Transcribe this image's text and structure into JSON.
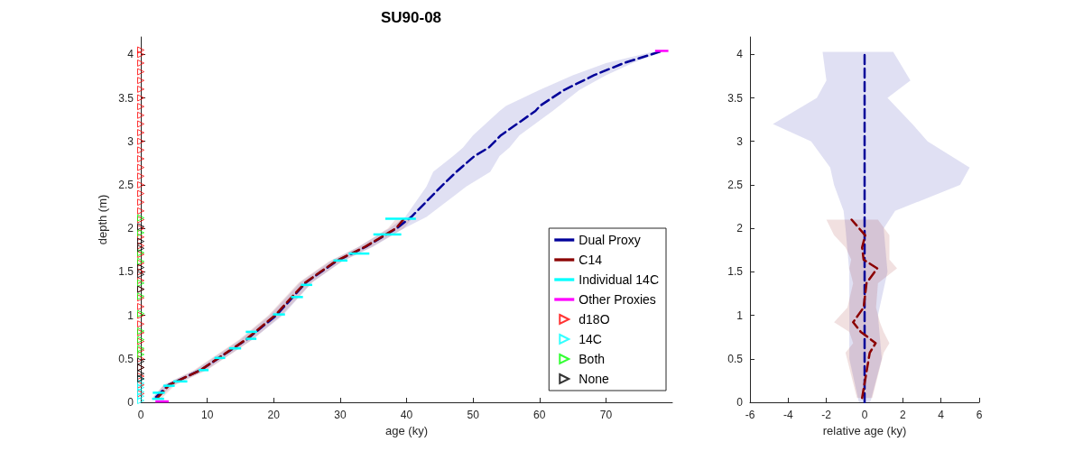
{
  "chart_data": [
    {
      "type": "line",
      "orientation": "horizontal",
      "title": "SU90-08",
      "xlabel": "age (ky)",
      "ylabel": "depth (m)",
      "xlim": [
        0,
        80
      ],
      "xticks": [
        0,
        10,
        20,
        30,
        40,
        50,
        60,
        70
      ],
      "ylim": [
        0,
        4.2
      ],
      "yticks": [
        0,
        0.5,
        1,
        1.5,
        2,
        2.5,
        3,
        3.5,
        4
      ],
      "grid": false,
      "legend": "bottom right",
      "series": [
        {
          "name": "Dual Proxy",
          "color": "#000099",
          "line_style": "dashed",
          "marker": "none",
          "x": [
            0.06,
            0.2,
            0.37,
            0.72,
            1.0,
            1.38,
            1.62,
            1.79,
            2.0,
            2.13,
            2.48,
            2.65,
            2.83,
            2.93,
            3.07,
            3.35,
            3.41,
            3.59,
            3.76,
            3.9,
            4.03
          ],
          "values": [
            2.3,
            4.2,
            9,
            15.9,
            20.4,
            24.9,
            29.4,
            33.9,
            38.5,
            40.7,
            45.2,
            47.5,
            50.2,
            52.4,
            54.2,
            59.4,
            60.1,
            63.7,
            68.2,
            72.7,
            78.1
          ],
          "lower": [
            1.8,
            3.5,
            8.2,
            15,
            19.4,
            24,
            28.5,
            32.8,
            37.4,
            39.8,
            43,
            44,
            47,
            48.5,
            50,
            54,
            55,
            60,
            65,
            70,
            77
          ],
          "upper": [
            2.8,
            5,
            9.8,
            16.8,
            21.4,
            25.8,
            30.3,
            35,
            39.6,
            43,
            49,
            52.6,
            54,
            55.5,
            57,
            62,
            63,
            66,
            70,
            74,
            78.5
          ]
        },
        {
          "name": "C14",
          "color": "#8b0000",
          "line_style": "dashed",
          "marker": "none",
          "x": [
            0.05,
            0.2,
            0.37,
            0.72,
            1.0,
            1.38,
            1.62,
            1.79,
            2.0,
            2.1
          ],
          "values": [
            2.5,
            4.3,
            9,
            15.8,
            20.2,
            24.8,
            29.3,
            33.8,
            38.4,
            39.5
          ],
          "lower": [
            1.8,
            3.4,
            8,
            14.8,
            19.2,
            23.8,
            28.3,
            32.8,
            37.2,
            38.3
          ],
          "upper": [
            3.2,
            5.2,
            10,
            16.8,
            21.2,
            25.8,
            30.3,
            34.8,
            39.6,
            40.7
          ]
        },
        {
          "name": "Individual 14C",
          "type": "bar",
          "color": "#00ffff",
          "x": [
            0.04,
            0.11,
            0.19,
            0.24,
            0.37,
            0.51,
            0.62,
            0.73,
            0.81,
            1.01,
            1.21,
            1.35,
            1.63,
            1.71,
            1.93,
            2.11
          ],
          "base": [
            1.7,
            1.8,
            3.4,
            4.9,
            8.7,
            11.1,
            13.3,
            15.8,
            15.8,
            19.9,
            22.6,
            24.1,
            29.0,
            31.3,
            35.0,
            36.8
          ],
          "values": [
            1.8,
            1.8,
            1.7,
            2.1,
            1.5,
            1.6,
            1.8,
            1.6,
            1.7,
            1.8,
            1.8,
            1.7,
            2.1,
            3.1,
            4.2,
            4.6
          ]
        },
        {
          "name": "Other Proxies",
          "type": "bar",
          "color": "#ff00ff",
          "x": [
            0.01,
            4.04
          ],
          "base": [
            2.2,
            77.4
          ],
          "values": [
            2.0,
            2.0
          ]
        },
        {
          "name": "d18O",
          "type": "scatter",
          "color": "#ff0000",
          "marker": "triangle",
          "x": [
            0.1,
            0.2,
            0.3,
            0.4,
            0.5,
            0.6,
            0.7,
            0.8,
            0.9,
            1.0,
            1.1,
            1.2,
            1.3,
            1.4,
            1.5,
            1.6,
            1.7,
            1.8,
            1.9,
            2.0,
            2.1,
            2.2,
            2.3,
            2.4,
            2.5,
            2.6,
            2.7,
            2.8,
            2.9,
            3.0,
            3.1,
            3.2,
            3.3,
            3.4,
            3.5,
            3.6,
            3.7,
            3.8,
            3.9,
            4.0,
            4.05
          ],
          "values": [
            0,
            0,
            0,
            0,
            0,
            0,
            0,
            0,
            0,
            0,
            0,
            0,
            0,
            0,
            0,
            0,
            0,
            0,
            0,
            0,
            0,
            0,
            0,
            0,
            0,
            0,
            0,
            0,
            0,
            0,
            0,
            0,
            0,
            0,
            0,
            0,
            0,
            0,
            0,
            0,
            0
          ]
        },
        {
          "name": "14C",
          "type": "scatter",
          "color": "#00ffff",
          "marker": "triangle",
          "x": [
            0.02,
            0.07,
            0.12,
            0.17,
            0.22,
            0.27
          ],
          "values": [
            0,
            0,
            0,
            0,
            0,
            0
          ]
        },
        {
          "name": "Both",
          "type": "scatter",
          "color": "#00ff00",
          "marker": "triangle",
          "x": [
            0.55,
            0.62,
            0.72,
            0.82,
            1.02,
            1.22,
            1.37,
            1.62,
            1.72,
            1.95,
            2.12
          ],
          "values": [
            0,
            0,
            0,
            0,
            0,
            0,
            0,
            0,
            0,
            0,
            0
          ]
        },
        {
          "name": "None",
          "type": "scatter",
          "color": "#000000",
          "marker": "triangle",
          "x": [
            0.27,
            0.33,
            0.4,
            0.47,
            1.3,
            1.47,
            1.55,
            1.77,
            1.85,
            2.02
          ],
          "values": [
            0,
            0,
            0,
            0,
            0,
            0,
            0,
            0,
            0,
            0
          ]
        }
      ]
    },
    {
      "type": "line",
      "orientation": "horizontal",
      "xlabel": "relative age (ky)",
      "xlim": [
        -6,
        6
      ],
      "xticks": [
        -6,
        -4,
        -2,
        0,
        2,
        4,
        6
      ],
      "ylim": [
        0,
        4.2
      ],
      "yticks": [
        0,
        0.5,
        1,
        1.5,
        2,
        2.5,
        3,
        3.5,
        4
      ],
      "grid": false,
      "legend": false,
      "series": [
        {
          "color": "#000099",
          "line_style": "dashed",
          "marker": "none",
          "x": [
            0,
            0.5,
            1,
            1.5,
            2,
            2.2,
            2.5,
            2.7,
            3,
            3.2,
            3.5,
            3.7,
            4.03
          ],
          "values": [
            0,
            0,
            0,
            0,
            0,
            0,
            0,
            0,
            0,
            0,
            0,
            0,
            0
          ],
          "lower": [
            -0.3,
            -0.8,
            -0.8,
            -0.8,
            -1.0,
            -1.1,
            -1.6,
            -1.8,
            -2.8,
            -4.8,
            -2.5,
            -2.0,
            -2.2
          ],
          "upper": [
            0.3,
            0.9,
            0.7,
            1.2,
            1.0,
            1.6,
            5.0,
            5.5,
            3.3,
            2.5,
            1.2,
            2.4,
            1.5
          ]
        },
        {
          "color": "#8b0000",
          "line_style": "dashed",
          "marker": "none",
          "x": [
            0.05,
            0.57,
            0.68,
            0.81,
            0.92,
            1.09,
            1.37,
            1.54,
            1.64,
            1.78,
            1.92,
            2.1
          ],
          "values": [
            -0.13,
            0.27,
            0.58,
            -0.2,
            -0.6,
            -0.05,
            0.1,
            0.66,
            -0.05,
            -0.13,
            0.03,
            -0.68
          ],
          "lower": [
            -0.4,
            -1.0,
            -0.6,
            -0.8,
            -1.6,
            -0.9,
            -0.6,
            -0.8,
            -0.7,
            -1.0,
            -1.6,
            -2.0
          ],
          "upper": [
            0.4,
            1.0,
            1.3,
            1.0,
            0.8,
            0.6,
            0.7,
            1.7,
            1.3,
            1.3,
            1.3,
            0.7
          ]
        }
      ]
    }
  ]
}
